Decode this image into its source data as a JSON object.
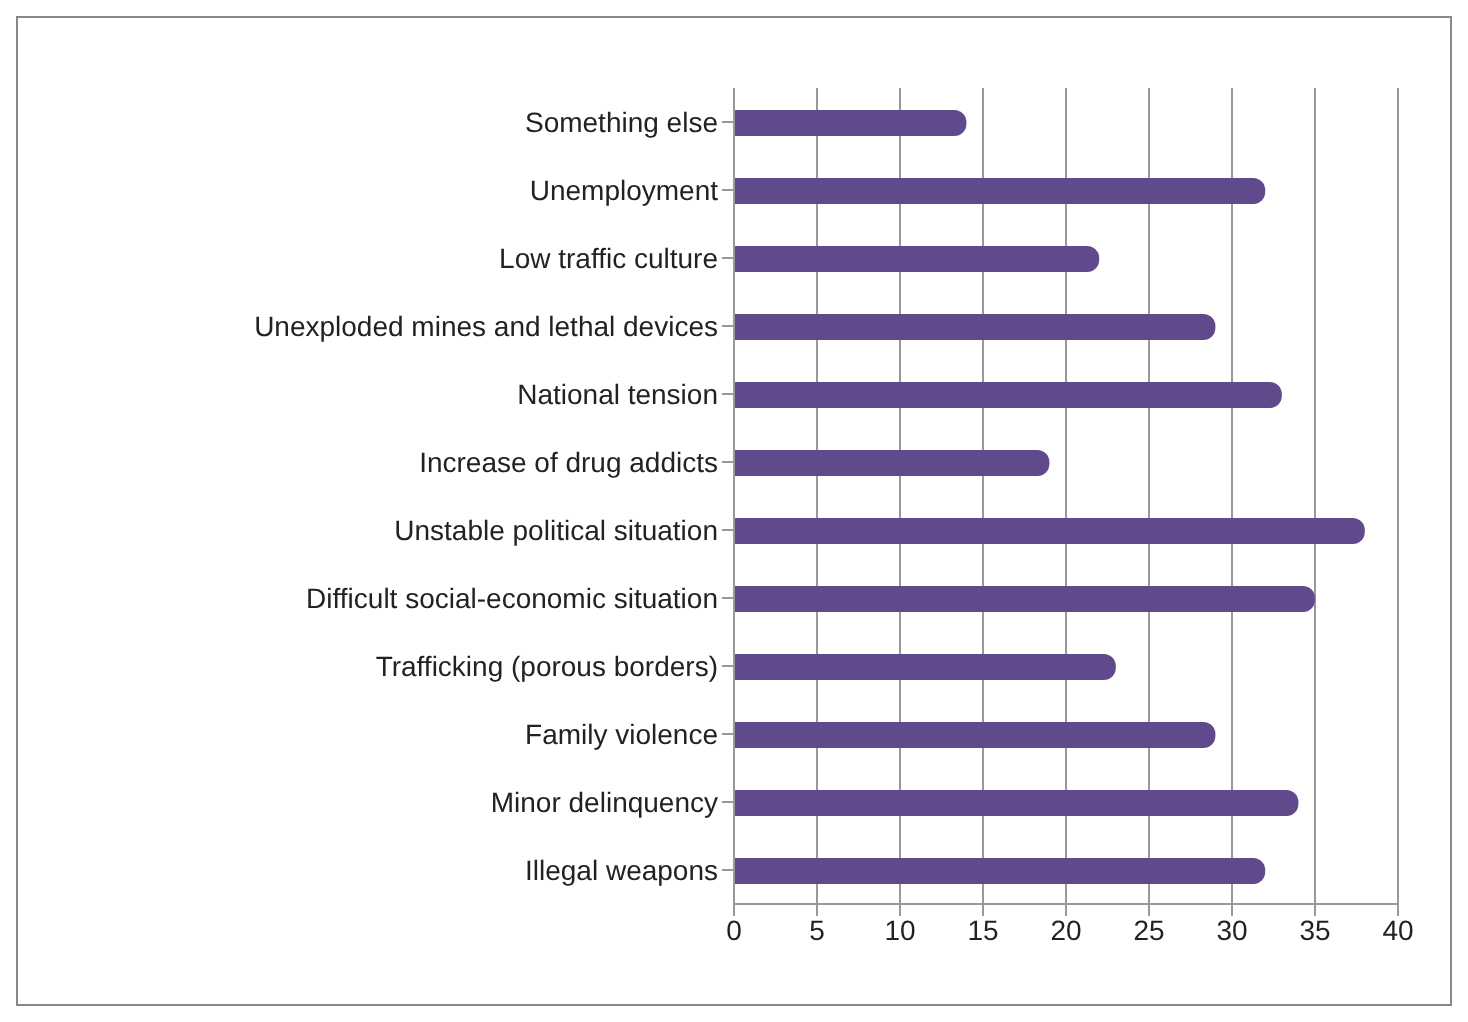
{
  "chart_data": {
    "type": "bar",
    "orientation": "horizontal",
    "categories": [
      "Something else",
      "Unemployment",
      "Low traffic culture",
      "Unexploded mines and lethal devices",
      "National tension",
      "Increase of drug addicts",
      "Unstable political situation",
      "Difficult social-economic situation",
      "Trafficking (porous borders)",
      "Family violence",
      "Minor delinquency",
      "Illegal weapons"
    ],
    "values": [
      14,
      32,
      22,
      29,
      33,
      19,
      38,
      35,
      23,
      29,
      34,
      32
    ],
    "color": "#604a8b",
    "xlim": [
      0,
      40
    ],
    "xticks": [
      0,
      5,
      10,
      15,
      20,
      25,
      30,
      35,
      40
    ],
    "grid": "x",
    "legend": false
  }
}
